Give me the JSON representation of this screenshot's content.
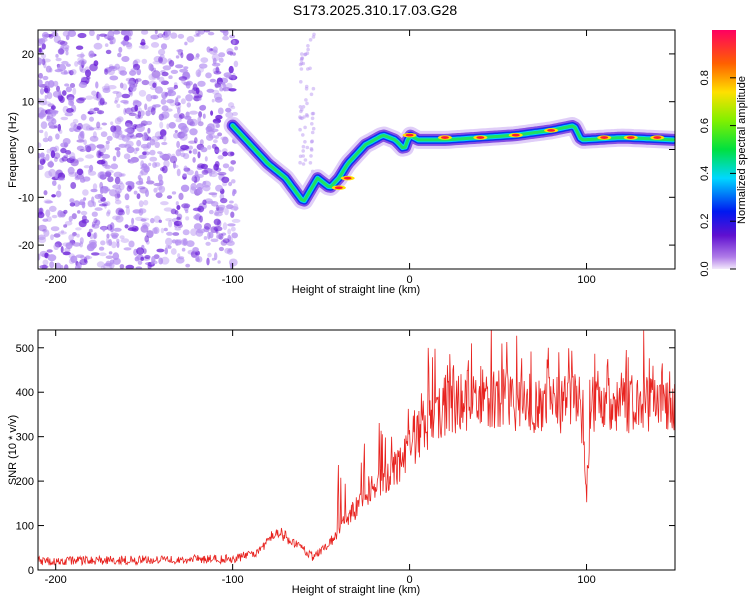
{
  "title": "S173.2025.310.17.03.G28",
  "colors": {
    "snr_line": "#e8231f",
    "heat_weak": "#b28cf0",
    "heat_strong": "#6a1fd8"
  },
  "chart_data": [
    {
      "type": "heatmap",
      "name": "spectrogram",
      "xlabel": "Height of straight line (km)",
      "ylabel": "Frequency (Hz)",
      "xlim": [
        -210,
        150
      ],
      "ylim": [
        -25,
        25
      ],
      "xticks": [
        -200,
        -100,
        0,
        100
      ],
      "xtick_labels": [
        "-200",
        "-100",
        "0",
        "100"
      ],
      "yticks": [
        20,
        10,
        0,
        -10,
        -20
      ],
      "ytick_labels": [
        "20",
        "10",
        "0",
        "-10",
        "-20"
      ],
      "colorbar": {
        "label": "Normalized spectral amplitude",
        "range": [
          0,
          1
        ],
        "ticks": [
          0.0,
          0.2,
          0.4,
          0.6,
          0.8
        ],
        "tick_labels": [
          "0.0",
          "0.2",
          "0.4",
          "0.6",
          "0.8"
        ]
      },
      "ridge": {
        "description_points_height_km": [
          -100,
          -90,
          -80,
          -70,
          -60,
          -52,
          -45,
          -40,
          -35,
          -25,
          -15,
          -8,
          -3,
          0,
          5,
          20,
          40,
          60,
          80,
          93,
          97,
          120,
          150
        ],
        "frequency_hz": [
          5,
          1,
          -3,
          -6,
          -11,
          -6,
          -8,
          -6,
          -3,
          1,
          3,
          2,
          0,
          3,
          2,
          2,
          2.5,
          3,
          4,
          5,
          2,
          2.5,
          2
        ]
      }
    },
    {
      "type": "line",
      "name": "snr",
      "xlabel": "Height of straight line (km)",
      "ylabel": "SNR (10 * v/v)",
      "xlim": [
        -210,
        150
      ],
      "ylim": [
        0,
        540
      ],
      "xticks": [
        -200,
        -100,
        0,
        100
      ],
      "xtick_labels": [
        "-200",
        "-100",
        "0",
        "100"
      ],
      "yticks": [
        0,
        100,
        200,
        300,
        400,
        500
      ],
      "ytick_labels": [
        "0",
        "100",
        "200",
        "300",
        "400",
        "500"
      ],
      "envelope": {
        "x": [
          -210,
          -100,
          -85,
          -75,
          -65,
          -55,
          -45,
          -35,
          -25,
          -15,
          -5,
          5,
          15,
          25,
          40,
          60,
          80,
          95,
          98,
          100,
          102,
          120,
          150
        ],
        "y": [
          20,
          25,
          40,
          90,
          60,
          30,
          60,
          120,
          160,
          200,
          240,
          300,
          340,
          370,
          390,
          380,
          370,
          375,
          300,
          170,
          360,
          370,
          380
        ]
      }
    }
  ]
}
